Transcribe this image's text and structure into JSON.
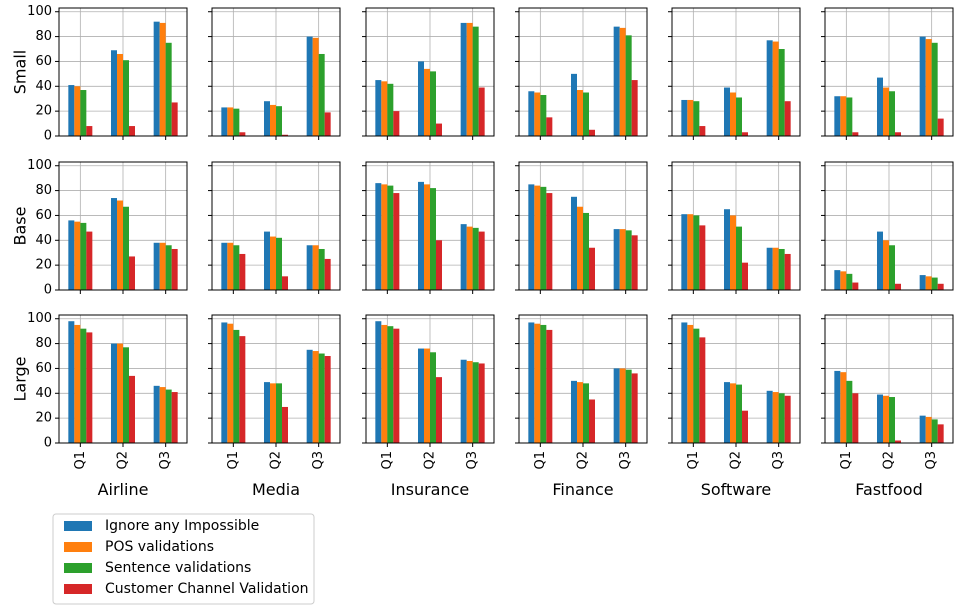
{
  "chart_data": {
    "type": "bar",
    "layout": "facet-grid 3x6",
    "row_labels": [
      "Small",
      "Base",
      "Large"
    ],
    "col_labels": [
      "Airline",
      "Media",
      "Insurance",
      "Finance",
      "Software",
      "Fastfood"
    ],
    "categories": [
      "Q1",
      "Q2",
      "Q3"
    ],
    "yticks": [
      0,
      20,
      40,
      60,
      80,
      100
    ],
    "ylim": [
      0,
      103
    ],
    "grid": true,
    "legend_position": "bottom-left",
    "series": [
      {
        "name": "Ignore any Impossible",
        "color": "#1f77b4"
      },
      {
        "name": "POS validations",
        "color": "#ff7f0e"
      },
      {
        "name": "Sentence validations",
        "color": "#2ca02c"
      },
      {
        "name": "Customer Channel Validation",
        "color": "#d62728"
      }
    ],
    "values": {
      "Small": {
        "Airline": [
          [
            41,
            40,
            37,
            8
          ],
          [
            69,
            66,
            61,
            8
          ],
          [
            92,
            91,
            75,
            27
          ]
        ],
        "Media": [
          [
            23,
            23,
            22,
            3
          ],
          [
            28,
            25,
            24,
            1
          ],
          [
            80,
            79,
            66,
            19
          ]
        ],
        "Insurance": [
          [
            45,
            44,
            42,
            20
          ],
          [
            60,
            54,
            52,
            10
          ],
          [
            91,
            91,
            88,
            39
          ]
        ],
        "Finance": [
          [
            36,
            35,
            33,
            15
          ],
          [
            50,
            37,
            35,
            5
          ],
          [
            88,
            87,
            81,
            45
          ]
        ],
        "Software": [
          [
            29,
            29,
            28,
            8
          ],
          [
            39,
            35,
            31,
            3
          ],
          [
            77,
            76,
            70,
            28
          ]
        ],
        "Fastfood": [
          [
            32,
            32,
            31,
            3
          ],
          [
            47,
            39,
            36,
            3
          ],
          [
            80,
            78,
            75,
            14
          ]
        ]
      },
      "Base": {
        "Airline": [
          [
            56,
            55,
            54,
            47
          ],
          [
            74,
            72,
            67,
            27
          ],
          [
            38,
            38,
            36,
            33
          ]
        ],
        "Media": [
          [
            38,
            38,
            36,
            29
          ],
          [
            47,
            43,
            42,
            11
          ],
          [
            36,
            36,
            33,
            25
          ]
        ],
        "Insurance": [
          [
            86,
            85,
            84,
            78
          ],
          [
            87,
            85,
            82,
            40
          ],
          [
            53,
            51,
            50,
            47
          ]
        ],
        "Finance": [
          [
            85,
            84,
            83,
            78
          ],
          [
            75,
            67,
            62,
            34
          ],
          [
            49,
            49,
            48,
            44
          ]
        ],
        "Software": [
          [
            61,
            61,
            60,
            52
          ],
          [
            65,
            60,
            51,
            22
          ],
          [
            34,
            34,
            33,
            29
          ]
        ],
        "Fastfood": [
          [
            16,
            15,
            13,
            6
          ],
          [
            47,
            40,
            36,
            5
          ],
          [
            12,
            11,
            10,
            5
          ]
        ]
      },
      "Large": {
        "Airline": [
          [
            98,
            95,
            92,
            89
          ],
          [
            80,
            80,
            77,
            54
          ],
          [
            46,
            45,
            43,
            41
          ]
        ],
        "Media": [
          [
            97,
            96,
            91,
            86
          ],
          [
            49,
            48,
            48,
            29
          ],
          [
            75,
            74,
            72,
            70
          ]
        ],
        "Insurance": [
          [
            98,
            95,
            94,
            92
          ],
          [
            76,
            76,
            73,
            53
          ],
          [
            67,
            66,
            65,
            64
          ]
        ],
        "Finance": [
          [
            97,
            96,
            95,
            91
          ],
          [
            50,
            49,
            48,
            35
          ],
          [
            60,
            60,
            59,
            56
          ]
        ],
        "Software": [
          [
            97,
            95,
            92,
            85
          ],
          [
            49,
            48,
            47,
            26
          ],
          [
            42,
            41,
            40,
            38
          ]
        ],
        "Fastfood": [
          [
            58,
            57,
            50,
            40
          ],
          [
            39,
            38,
            37,
            2
          ],
          [
            22,
            21,
            19,
            15
          ]
        ]
      }
    }
  }
}
